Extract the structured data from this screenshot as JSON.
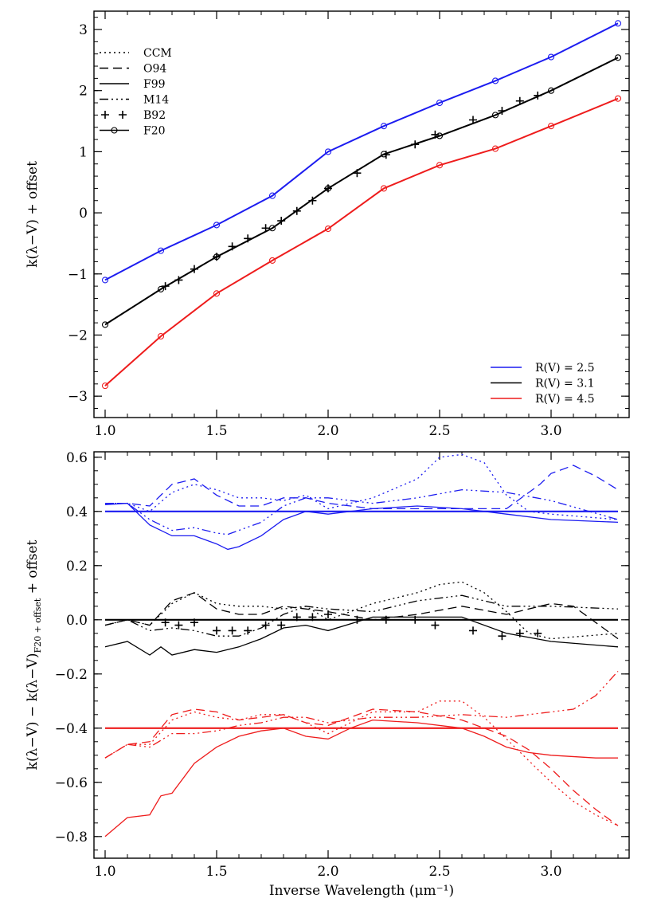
{
  "chart_data": [
    {
      "type": "line",
      "ylabel": "k(λ−V) + offset",
      "xlim": [
        0.95,
        3.35
      ],
      "ylim": [
        -3.35,
        3.3
      ],
      "xticks": [
        "1.0",
        "1.5",
        "2.0",
        "2.5",
        "3.0"
      ],
      "yticks": [
        "−3",
        "−2",
        "−1",
        "0",
        "1",
        "2",
        "3"
      ],
      "legend_styles": [
        {
          "label": "CCM"
        },
        {
          "label": "O94"
        },
        {
          "label": "F99"
        },
        {
          "label": "M14"
        },
        {
          "label": "B92"
        },
        {
          "label": "F20"
        }
      ],
      "legend_rv": [
        {
          "label": "R(V) = 2.5",
          "color": "#1c1cf0"
        },
        {
          "label": "R(V) = 3.1",
          "color": "#000000"
        },
        {
          "label": "R(V) = 4.5",
          "color": "#ee1c1c"
        }
      ],
      "series": [
        {
          "rv": "2.5",
          "model": "F20",
          "x": [
            1.0,
            1.25,
            1.5,
            1.75,
            2.0,
            2.25,
            2.5,
            2.75,
            3.0,
            3.3
          ],
          "y": [
            -1.1,
            -0.62,
            -0.2,
            0.28,
            1.0,
            1.42,
            1.8,
            2.16,
            2.55,
            3.1
          ]
        },
        {
          "rv": "3.1",
          "model": "F20",
          "x": [
            1.0,
            1.25,
            1.5,
            1.75,
            2.0,
            2.25,
            2.5,
            2.75,
            3.0,
            3.3
          ],
          "y": [
            -1.83,
            -1.25,
            -0.72,
            -0.25,
            0.4,
            0.96,
            1.26,
            1.6,
            2.0,
            2.54
          ]
        },
        {
          "rv": "3.1",
          "model": "B92",
          "x": [
            1.27,
            1.33,
            1.4,
            1.5,
            1.57,
            1.64,
            1.72,
            1.79,
            1.86,
            1.93,
            2.0,
            2.13,
            2.26,
            2.39,
            2.48,
            2.65,
            2.78,
            2.86,
            2.94
          ],
          "y": [
            -1.2,
            -1.1,
            -0.92,
            -0.72,
            -0.55,
            -0.42,
            -0.25,
            -0.13,
            0.03,
            0.2,
            0.4,
            0.65,
            0.95,
            1.12,
            1.28,
            1.52,
            1.67,
            1.83,
            1.92
          ]
        },
        {
          "rv": "4.5",
          "model": "F20",
          "x": [
            1.0,
            1.25,
            1.5,
            1.75,
            2.0,
            2.25,
            2.5,
            2.75,
            3.0,
            3.3
          ],
          "y": [
            -2.83,
            -2.02,
            -1.32,
            -0.78,
            -0.26,
            0.4,
            0.78,
            1.05,
            1.42,
            1.87
          ]
        }
      ]
    },
    {
      "type": "line",
      "xlabel": "Inverse Wavelength (μm⁻¹)",
      "ylabel": "k(λ−V) − k(λ−V)_F20 + offset",
      "xlim": [
        0.95,
        3.35
      ],
      "ylim": [
        -0.88,
        0.62
      ],
      "xticks": [
        "1.0",
        "1.5",
        "2.0",
        "2.5",
        "3.0"
      ],
      "yticks": [
        "−0.8",
        "−0.6",
        "−0.4",
        "−0.2",
        "0.0",
        "0.2",
        "0.4",
        "0.6"
      ],
      "reference_lines": [
        0.4,
        0.0,
        -0.4
      ],
      "series": [
        {
          "rv": "2.5",
          "model": "F99",
          "x": [
            1.0,
            1.1,
            1.2,
            1.3,
            1.4,
            1.5,
            1.55,
            1.6,
            1.7,
            1.8,
            1.9,
            2.0,
            2.2,
            2.4,
            2.6,
            2.8,
            3.0,
            3.3
          ],
          "y": [
            0.425,
            0.43,
            0.35,
            0.31,
            0.31,
            0.28,
            0.26,
            0.27,
            0.31,
            0.37,
            0.4,
            0.39,
            0.41,
            0.42,
            0.41,
            0.39,
            0.37,
            0.36
          ]
        },
        {
          "rv": "2.5",
          "model": "M14",
          "x": [
            1.0,
            1.1,
            1.2,
            1.3,
            1.4,
            1.5,
            1.55,
            1.6,
            1.7,
            1.8,
            1.9,
            2.0,
            2.2,
            2.4,
            2.6,
            2.8,
            3.0,
            3.3
          ],
          "y": [
            0.43,
            0.43,
            0.37,
            0.33,
            0.34,
            0.32,
            0.315,
            0.33,
            0.36,
            0.42,
            0.45,
            0.45,
            0.43,
            0.45,
            0.48,
            0.47,
            0.44,
            0.37
          ]
        },
        {
          "rv": "2.5",
          "model": "O94",
          "x": [
            1.0,
            1.1,
            1.2,
            1.3,
            1.4,
            1.5,
            1.6,
            1.7,
            1.8,
            1.9,
            2.0,
            2.2,
            2.4,
            2.6,
            2.8,
            2.95,
            3.0,
            3.1,
            3.2,
            3.3
          ],
          "y": [
            0.43,
            0.43,
            0.42,
            0.5,
            0.52,
            0.46,
            0.42,
            0.42,
            0.45,
            0.45,
            0.43,
            0.41,
            0.41,
            0.41,
            0.41,
            0.5,
            0.54,
            0.57,
            0.53,
            0.48
          ]
        },
        {
          "rv": "2.5",
          "model": "CCM",
          "x": [
            1.0,
            1.1,
            1.2,
            1.3,
            1.4,
            1.5,
            1.6,
            1.7,
            1.8,
            1.9,
            2.0,
            2.2,
            2.4,
            2.5,
            2.6,
            2.7,
            2.8,
            2.9,
            3.0,
            3.3
          ],
          "y": [
            0.43,
            0.43,
            0.4,
            0.47,
            0.5,
            0.48,
            0.45,
            0.45,
            0.44,
            0.46,
            0.41,
            0.45,
            0.52,
            0.6,
            0.61,
            0.58,
            0.46,
            0.4,
            0.39,
            0.37
          ]
        },
        {
          "rv": "3.1",
          "model": "F99",
          "x": [
            1.0,
            1.1,
            1.2,
            1.25,
            1.3,
            1.4,
            1.5,
            1.6,
            1.7,
            1.8,
            1.9,
            2.0,
            2.2,
            2.4,
            2.6,
            2.8,
            3.0,
            3.3
          ],
          "y": [
            -0.1,
            -0.08,
            -0.13,
            -0.1,
            -0.13,
            -0.11,
            -0.12,
            -0.1,
            -0.07,
            -0.03,
            -0.02,
            -0.04,
            0.01,
            0.01,
            0.01,
            -0.05,
            -0.08,
            -0.1
          ]
        },
        {
          "rv": "3.1",
          "model": "M14",
          "x": [
            1.0,
            1.1,
            1.2,
            1.3,
            1.4,
            1.5,
            1.6,
            1.7,
            1.8,
            1.9,
            2.0,
            2.2,
            2.4,
            2.6,
            2.8,
            3.0,
            3.3
          ],
          "y": [
            -0.02,
            0.0,
            -0.04,
            -0.03,
            -0.04,
            -0.06,
            -0.06,
            -0.03,
            0.02,
            0.05,
            0.04,
            0.03,
            0.07,
            0.09,
            0.05,
            0.05,
            0.04
          ]
        },
        {
          "rv": "3.1",
          "model": "O94",
          "x": [
            1.0,
            1.1,
            1.2,
            1.3,
            1.4,
            1.5,
            1.6,
            1.7,
            1.8,
            1.9,
            2.0,
            2.2,
            2.4,
            2.6,
            2.8,
            3.0,
            3.1,
            3.2,
            3.3
          ],
          "y": [
            -0.02,
            0.0,
            -0.02,
            0.07,
            0.1,
            0.04,
            0.02,
            0.02,
            0.05,
            0.04,
            0.03,
            0.0,
            0.02,
            0.05,
            0.02,
            0.06,
            0.05,
            -0.01,
            -0.07
          ]
        },
        {
          "rv": "3.1",
          "model": "CCM",
          "x": [
            1.0,
            1.1,
            1.2,
            1.3,
            1.4,
            1.5,
            1.6,
            1.7,
            1.8,
            1.9,
            2.0,
            2.2,
            2.4,
            2.5,
            2.6,
            2.7,
            2.8,
            2.9,
            3.0,
            3.3
          ],
          "y": [
            -0.02,
            0.0,
            -0.02,
            0.06,
            0.1,
            0.06,
            0.05,
            0.05,
            0.04,
            0.05,
            0.0,
            0.06,
            0.1,
            0.13,
            0.14,
            0.1,
            0.03,
            -0.05,
            -0.07,
            -0.05
          ]
        },
        {
          "rv": "3.1",
          "model": "B92",
          "x": [
            1.27,
            1.33,
            1.4,
            1.5,
            1.57,
            1.64,
            1.72,
            1.79,
            1.86,
            1.93,
            2.0,
            2.13,
            2.26,
            2.39,
            2.48,
            2.65,
            2.78,
            2.86,
            2.94
          ],
          "y": [
            -0.01,
            -0.02,
            -0.01,
            -0.04,
            -0.04,
            -0.04,
            -0.02,
            -0.02,
            0.01,
            0.01,
            0.02,
            0.0,
            0.0,
            0.0,
            -0.02,
            -0.04,
            -0.06,
            -0.05,
            -0.05
          ]
        },
        {
          "rv": "4.5",
          "model": "F99",
          "x": [
            1.0,
            1.1,
            1.2,
            1.25,
            1.3,
            1.4,
            1.5,
            1.6,
            1.7,
            1.8,
            1.9,
            2.0,
            2.1,
            2.2,
            2.4,
            2.6,
            2.7,
            2.8,
            2.9,
            3.0,
            3.2,
            3.3
          ],
          "y": [
            -0.8,
            -0.73,
            -0.72,
            -0.65,
            -0.64,
            -0.53,
            -0.47,
            -0.43,
            -0.41,
            -0.4,
            -0.43,
            -0.44,
            -0.4,
            -0.37,
            -0.38,
            -0.4,
            -0.43,
            -0.47,
            -0.49,
            -0.5,
            -0.51,
            -0.51
          ]
        },
        {
          "rv": "4.5",
          "model": "M14",
          "x": [
            1.0,
            1.1,
            1.2,
            1.3,
            1.4,
            1.5,
            1.6,
            1.7,
            1.8,
            1.9,
            2.0,
            2.2,
            2.4,
            2.6,
            2.8,
            3.0,
            3.1,
            3.2,
            3.3
          ],
          "y": [
            -0.51,
            -0.46,
            -0.47,
            -0.42,
            -0.42,
            -0.41,
            -0.39,
            -0.38,
            -0.36,
            -0.36,
            -0.38,
            -0.36,
            -0.36,
            -0.35,
            -0.36,
            -0.34,
            -0.33,
            -0.28,
            -0.19
          ]
        },
        {
          "rv": "4.5",
          "model": "O94",
          "x": [
            1.0,
            1.1,
            1.2,
            1.3,
            1.4,
            1.5,
            1.6,
            1.7,
            1.8,
            1.9,
            2.0,
            2.2,
            2.4,
            2.6,
            2.8,
            2.9,
            3.0,
            3.1,
            3.2,
            3.3
          ],
          "y": [
            -0.51,
            -0.46,
            -0.45,
            -0.35,
            -0.33,
            -0.34,
            -0.37,
            -0.36,
            -0.35,
            -0.38,
            -0.39,
            -0.33,
            -0.34,
            -0.37,
            -0.43,
            -0.48,
            -0.55,
            -0.63,
            -0.7,
            -0.76
          ]
        },
        {
          "rv": "4.5",
          "model": "CCM",
          "x": [
            1.0,
            1.1,
            1.2,
            1.3,
            1.4,
            1.5,
            1.6,
            1.7,
            1.8,
            1.9,
            2.0,
            2.2,
            2.4,
            2.5,
            2.6,
            2.7,
            2.8,
            2.9,
            3.0,
            3.1,
            3.2,
            3.3
          ],
          "y": [
            -0.51,
            -0.46,
            -0.46,
            -0.37,
            -0.34,
            -0.36,
            -0.37,
            -0.35,
            -0.35,
            -0.38,
            -0.42,
            -0.34,
            -0.34,
            -0.3,
            -0.3,
            -0.36,
            -0.44,
            -0.52,
            -0.6,
            -0.67,
            -0.72,
            -0.76
          ]
        }
      ]
    }
  ]
}
